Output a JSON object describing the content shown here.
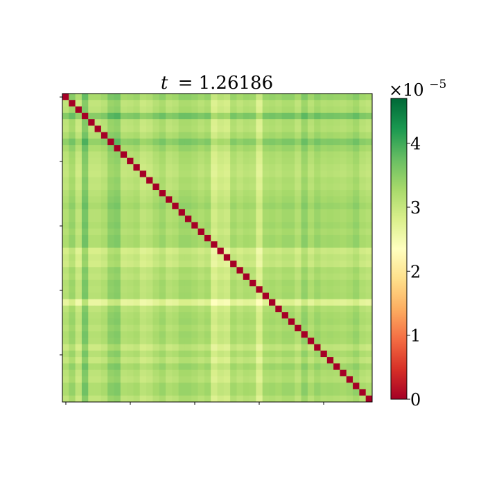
{
  "chart_data": {
    "type": "heatmap",
    "title": "t = 1.26186",
    "title_prefix": "t",
    "title_value": "= 1.26186",
    "n": 48,
    "xlabel": "",
    "ylabel": "",
    "colormap": "RdYlGn",
    "colormap_stops": [
      "#a50026",
      "#d73027",
      "#f46d43",
      "#fdae61",
      "#fee08b",
      "#ffffbf",
      "#d9ef8b",
      "#a6d96a",
      "#66bd63",
      "#1a9850",
      "#006837"
    ],
    "value_range": [
      0,
      4.7
    ],
    "diagonal_value": 0,
    "colorbar": {
      "ticks": [
        0,
        1,
        2,
        3,
        4
      ],
      "tick_labels": [
        "0",
        "1",
        "2",
        "3",
        "4"
      ],
      "multiplier_prefix": "×10",
      "multiplier_exponent": "−5"
    },
    "row_factors": [
      0.55,
      0.1,
      0.2,
      1.0,
      0.15,
      0.1,
      0.35,
      0.85,
      0.45,
      0.2,
      0.15,
      0.05,
      0.0,
      0.15,
      0.1,
      0.25,
      0.35,
      0.5,
      0.3,
      0.3,
      0.4,
      0.25,
      0.4,
      0.4,
      -0.3,
      -0.1,
      -0.2,
      0.2,
      0.1,
      0.3,
      0.25,
      0.3,
      -0.7,
      0.15,
      0.3,
      0.35,
      0.2,
      0.35,
      0.3,
      -0.1,
      0.3,
      0.0,
      0.45,
      0.2,
      0.1,
      0.4,
      0.4,
      0.1
    ],
    "col_factors": [
      0.1,
      0.5,
      -0.1,
      1.0,
      0.05,
      0.05,
      0.2,
      0.7,
      0.8,
      0.1,
      0.15,
      0.25,
      -0.1,
      0.0,
      0.25,
      0.45,
      0.1,
      0.2,
      0.45,
      0.45,
      0.35,
      0.2,
      0.35,
      -0.45,
      -0.2,
      -0.3,
      0.3,
      0.1,
      0.25,
      0.2,
      -0.5,
      0.3,
      0.35,
      0.25,
      0.4,
      0.4,
      0.1,
      0.65,
      0.2,
      0.5,
      0.3,
      0.35,
      0.3,
      0.25,
      0.35,
      0.55,
      0.2,
      0.1
    ],
    "base_value": 2.95,
    "factor_scale": 1.05
  }
}
